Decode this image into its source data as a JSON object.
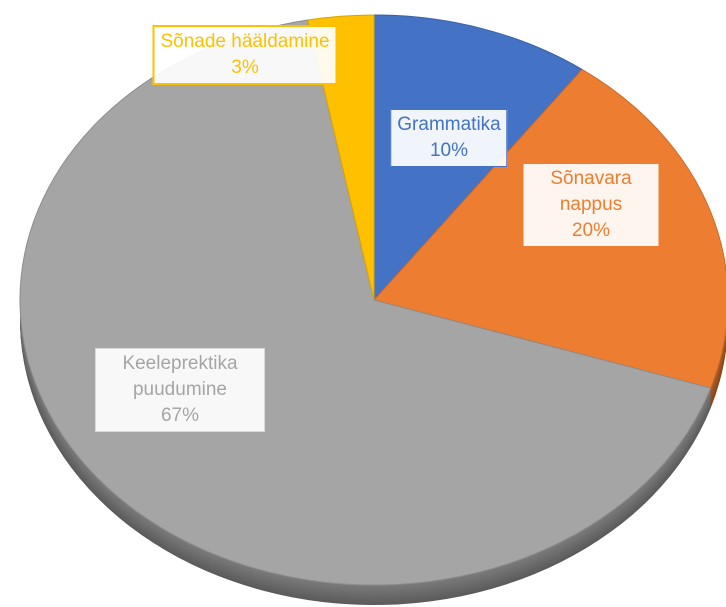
{
  "chart_data": {
    "type": "pie",
    "categories": [
      "Grammatika",
      "Sõnavara nappus",
      "Keeleprektika puudumine",
      "Sõnade hääldamine"
    ],
    "values": [
      10,
      20,
      67,
      3
    ],
    "value_labels": [
      "10%",
      "20%",
      "67%",
      "3%"
    ],
    "colors": [
      "#4472c4",
      "#ed7d31",
      "#a5a5a5",
      "#ffc000"
    ]
  }
}
